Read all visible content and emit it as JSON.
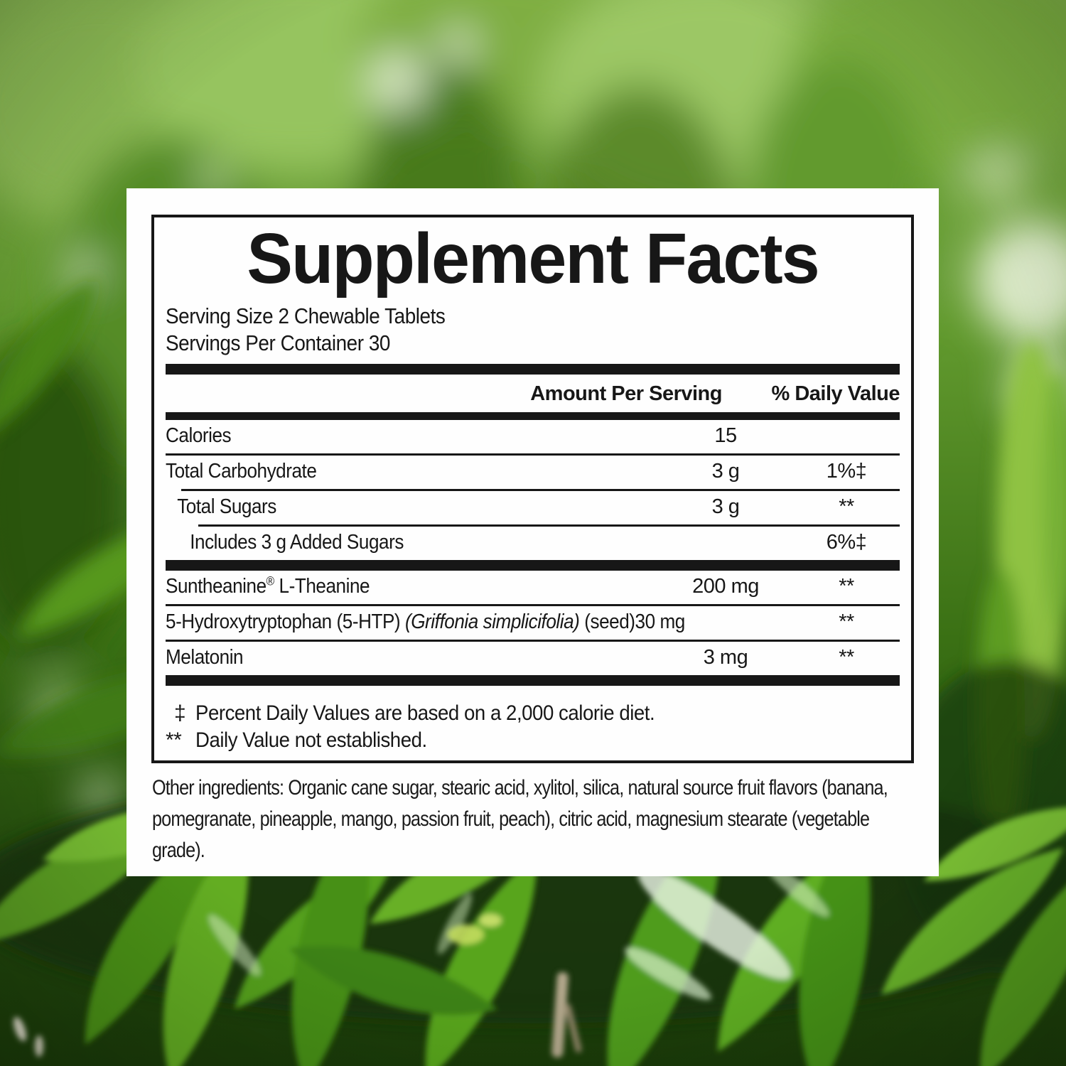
{
  "colors": {
    "panel_bg": "#fefefe",
    "ink": "#171717",
    "leaf_dark": "#1d400b",
    "leaf_mid": "#4f8a21",
    "leaf_bright": "#6fbe27",
    "leaf_light": "#9cc765",
    "bokeh_highlight": "#ecf5de"
  },
  "label": {
    "title": "Supplement Facts",
    "serving_size": "Serving Size 2 Chewable Tablets",
    "servings_per_container": "Servings Per Container 30",
    "columns": {
      "amount": "Amount Per Serving",
      "daily_value": "% Daily Value"
    },
    "nutrient_rows": [
      {
        "name_parts": [
          {
            "t": "Calories"
          }
        ],
        "amount": "15",
        "dv": "",
        "indent": 0,
        "sep": "full"
      },
      {
        "name_parts": [
          {
            "t": "Total Carbohydrate"
          }
        ],
        "amount": "3 g",
        "dv": "1%‡",
        "indent": 0,
        "sep": "i1"
      },
      {
        "name_parts": [
          {
            "t": "Total Sugars"
          }
        ],
        "amount": "3 g",
        "dv": "**",
        "indent": 1,
        "sep": "i2"
      },
      {
        "name_parts": [
          {
            "t": "Includes 3 g Added Sugars"
          }
        ],
        "amount": "",
        "dv": "6%‡",
        "indent": 2,
        "sep": ""
      }
    ],
    "ingredient_rows": [
      {
        "name_parts": [
          {
            "t": "Suntheanine"
          },
          {
            "t": "®",
            "sup": true
          },
          {
            "t": " L-Theanine"
          }
        ],
        "amount": "200 mg",
        "dv": "**",
        "indent": 0,
        "sep": "full"
      },
      {
        "name_parts": [
          {
            "t": "5-Hydroxytryptophan (5-HTP) "
          },
          {
            "t": "(Griffonia simplicifolia)",
            "i": true
          },
          {
            "t": " (seed)"
          }
        ],
        "amount": "30 mg",
        "amount_inline": true,
        "dv": "**",
        "indent": 0,
        "sep": "full"
      },
      {
        "name_parts": [
          {
            "t": "Melatonin"
          }
        ],
        "amount": "3 mg",
        "dv": "**",
        "indent": 0,
        "sep": ""
      }
    ],
    "footnotes": [
      {
        "marker": "‡",
        "text": "Percent Daily Values are based on a 2,000 calorie diet."
      },
      {
        "marker": "**",
        "text": "Daily Value not established."
      }
    ],
    "other_ingredients": "Other ingredients: Organic cane sugar, stearic acid, xylitol, silica, natural source fruit flavors (banana, pomegranate, pineapple, mango, passion fruit, peach), citric acid, magnesium stearate (vegetable grade)."
  }
}
